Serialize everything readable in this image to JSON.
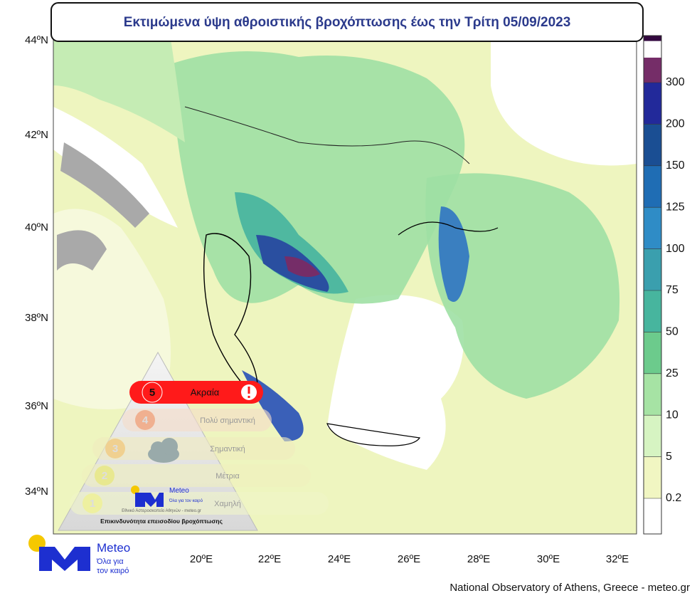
{
  "title": "Εκτιμώμενα ύψη αθροιστικής βροχόπτωσης έως την Τρίτη 05/09/2023",
  "lat_labels": [
    "44ºN",
    "42ºN",
    "40ºN",
    "38ºN",
    "36ºN",
    "34ºN"
  ],
  "lon_labels": [
    "20ºE",
    "22ºE",
    "24ºE",
    "26ºE",
    "28ºE",
    "30ºE",
    "32ºE"
  ],
  "colorbar": {
    "levels": [
      0.2,
      5,
      10,
      25,
      50,
      75,
      100,
      125,
      150,
      200,
      300
    ],
    "colors": [
      "#ffffff",
      "#f1f6c2",
      "#d6f4c2",
      "#a6e3a4",
      "#6ccb8c",
      "#47b59e",
      "#3a9fae",
      "#2f8cc6",
      "#1f6db4",
      "#1a4e93",
      "#22299a",
      "#752d68",
      "#33093f"
    ]
  },
  "risk": {
    "levels": [
      {
        "number": "5",
        "label": "Ακραία"
      },
      {
        "number": "4",
        "label": "Πολύ σημαντική"
      },
      {
        "number": "3",
        "label": "Σημαντική"
      },
      {
        "number": "2",
        "label": "Μέτρια"
      },
      {
        "number": "1",
        "label": "Χαμηλή"
      }
    ],
    "logo_name": "Meteo",
    "logo_tagline": "Όλα για τον καιρό",
    "credit": "Εθνικό Αστεροσκοπείο Αθηνών - meteo.gr",
    "caption": "Επικινδυνότητα επεισοδίου βροχόπτωσης"
  },
  "logo": {
    "name": "Meteo",
    "tagline_1": "Όλα για",
    "tagline_2": "τον καιρό"
  },
  "footer": "National Observatory of Athens, Greece - meteo.gr"
}
